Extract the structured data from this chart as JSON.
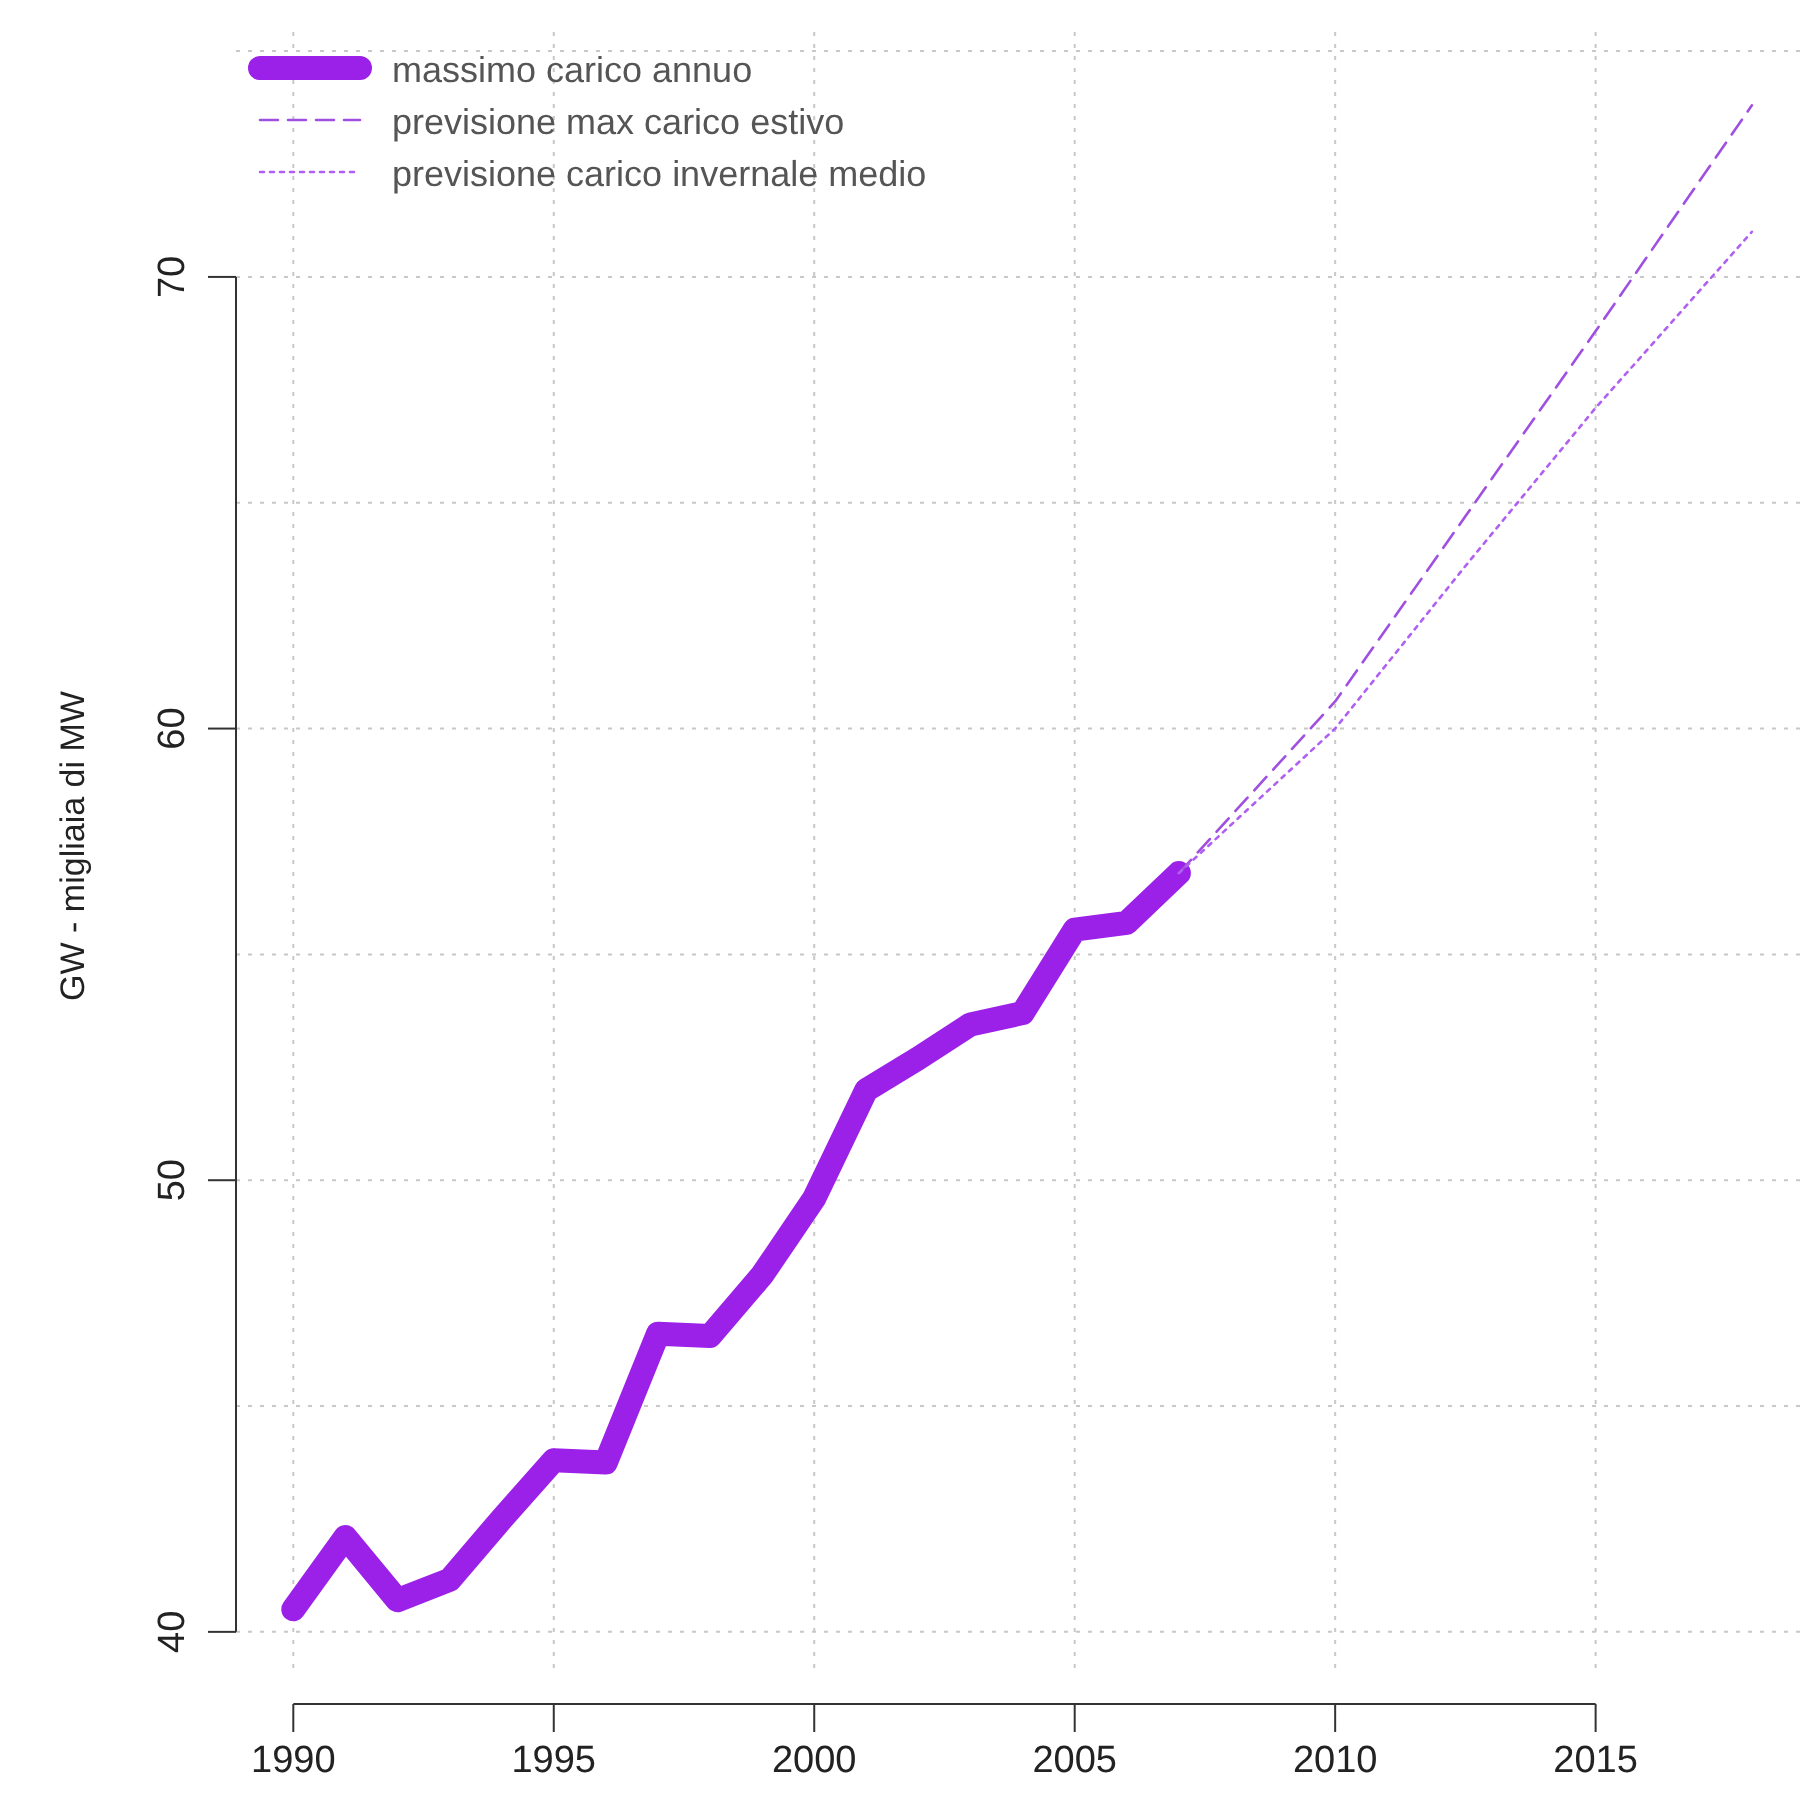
{
  "chart_data": {
    "type": "line",
    "ylabel": "GW - migliaia di MW",
    "xlim": [
      1988.9,
      2019
    ],
    "ylim": [
      39.2,
      75.6
    ],
    "xticks": [
      1990,
      1995,
      2000,
      2005,
      2010,
      2015
    ],
    "yticks": [
      40,
      {
        "value": 45,
        "label": null
      },
      50,
      {
        "value": 55,
        "label": null
      },
      60,
      {
        "value": 65,
        "label": null
      },
      70,
      {
        "value": 75,
        "label": null
      }
    ],
    "grid": true,
    "legend": "top left",
    "series": [
      {
        "name": "massimo carico annuo",
        "color": "#9b20e8",
        "line_style": "solid",
        "x": [
          1990,
          1991,
          1992,
          1993,
          1994,
          1995,
          1996,
          1997,
          1998,
          1999,
          2000,
          2001,
          2002,
          2003,
          2004,
          2005,
          2006,
          2007
        ],
        "values": [
          40.5,
          42.1,
          40.7,
          41.15,
          42.5,
          43.8,
          43.75,
          46.6,
          46.55,
          47.9,
          49.6,
          52.0,
          52.7,
          53.45,
          53.7,
          55.55,
          55.7,
          56.8
        ]
      },
      {
        "name": "previsione max carico estivo",
        "color": "#a050e0",
        "line_style": "dashed",
        "x": [
          2007,
          2010,
          2012.5,
          2015,
          2018
        ],
        "values": [
          56.8,
          60.6,
          64.7,
          68.8,
          73.8
        ]
      },
      {
        "name": "previsione carico invernale medio",
        "color": "#b060f0",
        "line_style": "dotted",
        "x": [
          2007,
          2010,
          2012.5,
          2015,
          2018
        ],
        "values": [
          56.8,
          60.0,
          63.6,
          67.1,
          71.0
        ]
      }
    ]
  }
}
